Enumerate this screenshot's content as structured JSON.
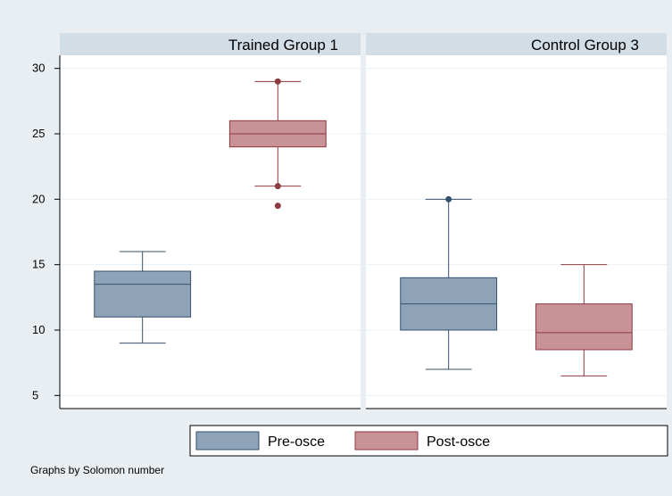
{
  "chart_data": {
    "type": "boxplot",
    "note": "Graphs by Solomon number",
    "y_axis": {
      "ylim": [
        4,
        31
      ],
      "ticks": [
        5,
        10,
        15,
        20,
        25,
        30
      ]
    },
    "legend": {
      "position": "bottom",
      "items": [
        {
          "label": "Pre-osce",
          "color": "#8ea2b8",
          "edge": "#34516e"
        },
        {
          "label": "Post-osce",
          "color": "#c99296",
          "edge": "#8e3a40"
        }
      ]
    },
    "panels": [
      {
        "title": "Trained Group 1",
        "boxes": [
          {
            "series": "Pre-osce",
            "min": 9,
            "q1": 11,
            "median": 13.5,
            "q3": 14.5,
            "max": 16,
            "outliers": []
          },
          {
            "series": "Post-osce",
            "min": 21,
            "q1": 24,
            "median": 25,
            "q3": 26,
            "max": 29,
            "outliers": [
              29,
              21,
              19.5
            ]
          }
        ]
      },
      {
        "title": "Control Group 3",
        "boxes": [
          {
            "series": "Pre-osce",
            "min": 7,
            "q1": 10,
            "median": 12,
            "q3": 14,
            "max": 20,
            "outliers": [
              20
            ]
          },
          {
            "series": "Post-osce",
            "min": 6.5,
            "q1": 8.5,
            "median": 9.8,
            "q3": 12,
            "max": 15,
            "outliers": []
          }
        ]
      }
    ]
  }
}
